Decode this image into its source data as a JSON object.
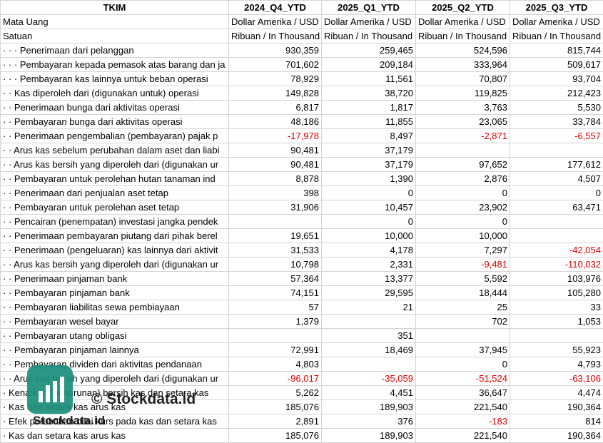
{
  "table": {
    "header": [
      "TKIM",
      "2024_Q4_YTD",
      "2025_Q1_YTD",
      "2025_Q2_YTD",
      "2025_Q3_YTD"
    ],
    "rows": [
      [
        "Mata Uang",
        "Dollar Amerika / USD",
        "Dollar Amerika / USD",
        "Dollar Amerika / USD",
        "Dollar Amerika / USD"
      ],
      [
        "Satuan",
        "Ribuan / In Thousand",
        "Ribuan / In Thousand",
        "Ribuan / In Thousand",
        "Ribuan / In Thousand"
      ],
      [
        "· · · Penerimaan dari pelanggan",
        "930,359",
        "259,465",
        "524,596",
        "815,744"
      ],
      [
        "· · · Pembayaran kepada pemasok atas barang dan ja",
        "701,602",
        "209,184",
        "333,964",
        "509,617"
      ],
      [
        "· · · Pembayaran kas lainnya untuk beban operasi",
        "78,929",
        "11,561",
        "70,807",
        "93,704"
      ],
      [
        "· · Kas diperoleh dari (digunakan untuk) operasi",
        "149,828",
        "38,720",
        "119,825",
        "212,423"
      ],
      [
        "· · Penerimaan bunga dari aktivitas operasi",
        "6,817",
        "1,817",
        "3,763",
        "5,530"
      ],
      [
        "· · Pembayaran bunga dari aktivitas operasi",
        "48,186",
        "11,855",
        "23,065",
        "33,784"
      ],
      [
        "· · Penerimaan pengembalian (pembayaran) pajak p",
        "-17,978",
        "8,497",
        "-2,871",
        "-6,557"
      ],
      [
        "· · Arus kas sebelum perubahan dalam aset dan liabi",
        "90,481",
        "37,179",
        null,
        null
      ],
      [
        "· · Arus kas bersih yang diperoleh dari (digunakan ur",
        "90,481",
        "37,179",
        "97,652",
        "177,612"
      ],
      [
        "· · Pembayaran untuk perolehan hutan tanaman ind",
        "8,878",
        "1,390",
        "2,876",
        "4,507"
      ],
      [
        "· · Penerimaan dari penjualan aset tetap",
        "398",
        "0",
        "0",
        "0"
      ],
      [
        "· · Pembayaran untuk perolehan aset tetap",
        "31,906",
        "10,457",
        "23,902",
        "63,471"
      ],
      [
        "· · Pencairan (penempatan) investasi jangka pendek",
        null,
        "0",
        "0",
        null
      ],
      [
        "· · Penerimaan pembayaran piutang dari pihak berel",
        "19,651",
        "10,000",
        "10,000",
        null
      ],
      [
        "· · Penerimaan (pengeluaran) kas lainnya dari aktivit",
        "31,533",
        "4,178",
        "7,297",
        "-42,054"
      ],
      [
        "· · Arus kas bersih yang diperoleh dari (digunakan ur",
        "10,798",
        "2,331",
        "-9,481",
        "-110,032"
      ],
      [
        "· · Penerimaan pinjaman bank",
        "57,364",
        "13,377",
        "5,592",
        "103,976"
      ],
      [
        "· · Pembayaran pinjaman bank",
        "74,151",
        "29,595",
        "18,444",
        "105,280"
      ],
      [
        "· · Pembayaran liabilitas sewa pembiayaan",
        "57",
        "21",
        "25",
        "33"
      ],
      [
        "· · Pembayaran wesel bayar",
        "1,379",
        null,
        "702",
        "1,053"
      ],
      [
        "· · Pembayaran utang obligasi",
        null,
        "351",
        null,
        null
      ],
      [
        "· · Pembayaran pinjaman lainnya",
        "72,991",
        "18,469",
        "37,945",
        "55,923"
      ],
      [
        "· · Pembayaran dividen dari aktivitas pendanaan",
        "4,803",
        null,
        "0",
        "4,793"
      ],
      [
        "· · Arus kas bersih yang diperoleh dari (digunakan ur",
        "-96,017",
        "-35,059",
        "-51,524",
        "-63,106"
      ],
      [
        "· Kenaikan (penurunan) bersih kas dan setara kas",
        "5,262",
        "4,451",
        "36,647",
        "4,474"
      ],
      [
        "· Kas dan setara kas arus kas",
        "185,076",
        "189,903",
        "221,540",
        "190,364"
      ],
      [
        "· Efek perubahan nilai kurs pada kas dan setara kas",
        "2,891",
        "376",
        "-183",
        "814"
      ],
      [
        "· Kas dan setara kas arus kas",
        "185,076",
        "189,903",
        "221,540",
        "190,364"
      ]
    ]
  },
  "watermark": {
    "caption": "© Stockdata.id",
    "logo_text": "Stockdata.id"
  }
}
